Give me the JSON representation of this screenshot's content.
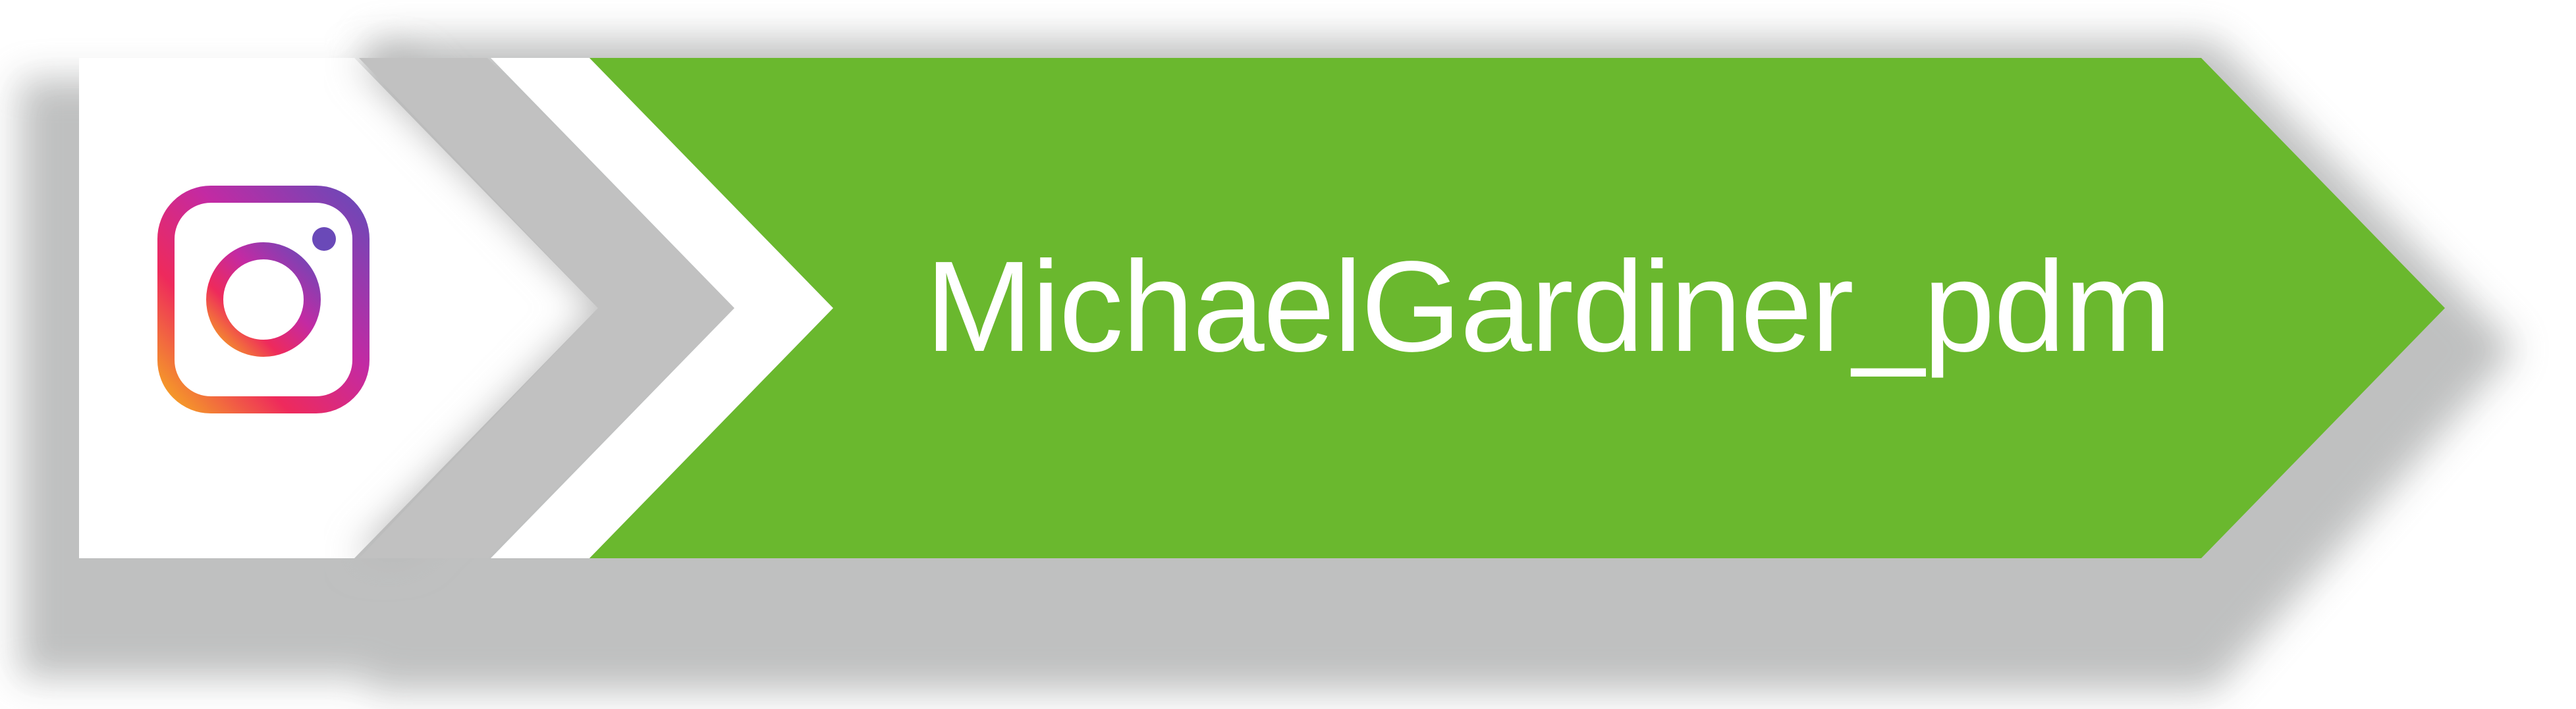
{
  "badge": {
    "platform_icon": "instagram-icon",
    "handle": "MichaelGardiner_pdm",
    "colors": {
      "accent_green": "#6ab82e",
      "tile_white": "#ffffff",
      "shadow_grey": "#bcbdbd",
      "icon_gradient": [
        "#f5a623",
        "#ee2a5c",
        "#c32aa3",
        "#7b3fb2",
        "#4f5bd5"
      ]
    }
  }
}
